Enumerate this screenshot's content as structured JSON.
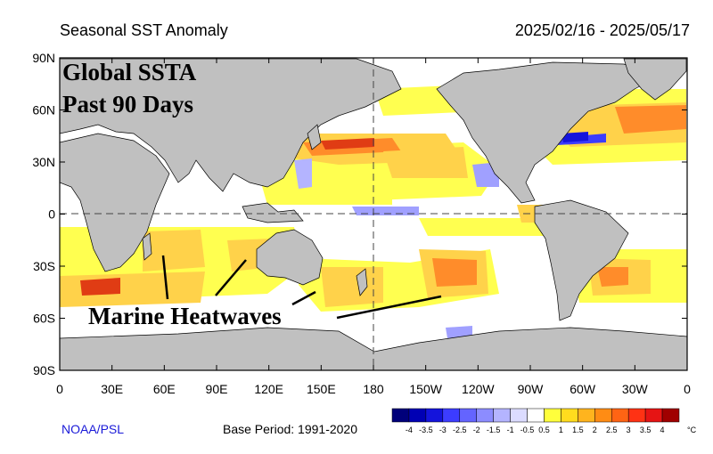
{
  "header": {
    "title": "Seasonal SST Anomaly",
    "date_range": "2025/02/16 - 2025/05/17"
  },
  "annotations": {
    "headline_line1": "Global SSTA",
    "headline_line2": "Past 90 Days",
    "callout": "Marine Heatwaves"
  },
  "axes": {
    "lat_labels": [
      "90N",
      "60N",
      "30N",
      "0",
      "30S",
      "60S",
      "90S"
    ],
    "lon_labels": [
      "0",
      "30E",
      "60E",
      "90E",
      "120E",
      "150E",
      "180",
      "150W",
      "120W",
      "90W",
      "60W",
      "30W",
      "0"
    ]
  },
  "footer": {
    "org": "NOAA/PSL",
    "base_period": "Base Period: 1991-2020"
  },
  "colorbar": {
    "labels": [
      "-4",
      "-3.5",
      "-3",
      "-2.5",
      "-2",
      "-1.5",
      "-1",
      "-0.5",
      "0.5",
      "1",
      "1.5",
      "2",
      "2.5",
      "3",
      "3.5",
      "4"
    ],
    "unit": "°C",
    "colors": [
      "#00007a",
      "#0000b4",
      "#1414dc",
      "#3c3cff",
      "#6464ff",
      "#8c8cff",
      "#b4b4ff",
      "#dcdcff",
      "#ffffff",
      "#ffff3c",
      "#ffdc1e",
      "#ffb41e",
      "#ff8c14",
      "#ff6414",
      "#ff3214",
      "#e61414",
      "#a00000"
    ]
  },
  "colors": {
    "land": "#c0c0c0",
    "ocean": "#ffffff",
    "anomaly_light": "#ffff50",
    "anomaly_mid": "#ffd24a",
    "anomaly_strong": "#ff8c2a",
    "anomaly_hot": "#e03c14",
    "anomaly_cool": "#a0a0ff"
  }
}
